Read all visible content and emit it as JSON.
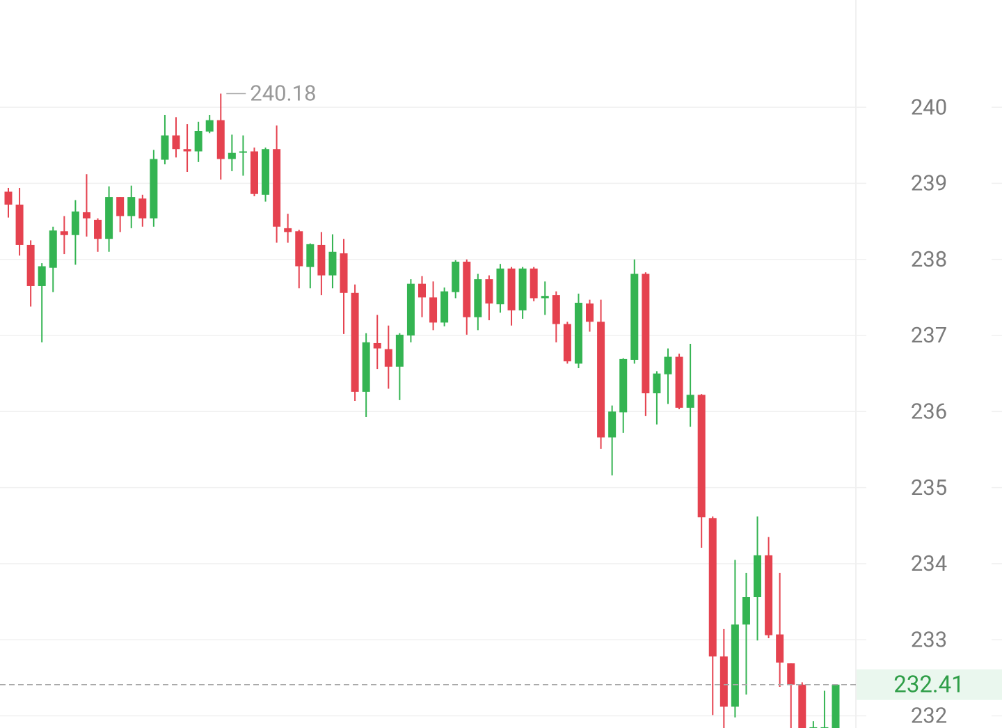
{
  "chart_data": {
    "type": "candlestick",
    "ylim": [
      231.84,
      241.41
    ],
    "yticks": [
      232,
      233,
      234,
      235,
      236,
      237,
      238,
      239,
      240
    ],
    "grid": true,
    "up_color": "#34b452",
    "down_color": "#e5424f",
    "high_marker": 240.18,
    "last_price": 232.41,
    "open": [
      238.89,
      238.72,
      238.19,
      237.65,
      237.89,
      238.37,
      238.32,
      238.62,
      238.52,
      238.27,
      238.82,
      238.57,
      238.8,
      238.54,
      239.31,
      239.63,
      239.45,
      239.42,
      239.68,
      239.83,
      239.32,
      239.41,
      239.42,
      238.85,
      239.45,
      238.41,
      238.37,
      237.9,
      238.19,
      237.79,
      238.08,
      237.56,
      236.26,
      236.9,
      236.82,
      236.59,
      237.0,
      237.68,
      237.5,
      237.17,
      237.57,
      237.97,
      237.24,
      237.74,
      237.41,
      237.88,
      237.33,
      237.88,
      237.49,
      237.53,
      237.15,
      236.63,
      237.42,
      237.18,
      235.66,
      235.99,
      236.68,
      237.81,
      236.24,
      236.49,
      236.72,
      236.05,
      236.22,
      234.6,
      232.78,
      232.12,
      233.2,
      233.56,
      234.11,
      233.07,
      232.69,
      232.41,
      231.75,
      231.7,
      231.8
    ],
    "high": [
      238.94,
      238.94,
      238.25,
      237.95,
      238.43,
      238.57,
      238.78,
      239.12,
      238.54,
      238.96,
      238.82,
      238.97,
      238.85,
      239.44,
      239.9,
      239.87,
      239.78,
      239.81,
      239.9,
      240.18,
      239.64,
      239.63,
      239.47,
      239.47,
      239.76,
      238.6,
      238.39,
      238.21,
      238.36,
      238.33,
      238.27,
      237.67,
      237.03,
      237.27,
      237.13,
      237.03,
      237.74,
      237.78,
      237.71,
      237.63,
      237.99,
      238.0,
      237.81,
      237.79,
      237.94,
      237.9,
      237.9,
      237.9,
      237.71,
      237.58,
      237.18,
      237.55,
      237.47,
      237.47,
      236.08,
      236.7,
      238.0,
      237.83,
      236.53,
      236.83,
      236.76,
      236.89,
      236.23,
      234.62,
      233.14,
      234.05,
      233.88,
      234.62,
      234.35,
      233.88,
      232.69,
      232.44,
      231.93,
      232.33,
      232.41
    ],
    "low": [
      238.55,
      238.05,
      237.38,
      236.91,
      237.57,
      238.07,
      237.93,
      238.3,
      238.1,
      238.1,
      238.36,
      238.41,
      238.43,
      238.43,
      239.25,
      239.34,
      239.15,
      239.28,
      239.66,
      239.05,
      239.16,
      239.1,
      238.83,
      238.76,
      238.22,
      238.22,
      237.62,
      237.62,
      237.53,
      237.62,
      237.02,
      236.14,
      235.93,
      236.56,
      236.3,
      236.15,
      236.91,
      237.24,
      237.07,
      237.12,
      237.49,
      237.01,
      237.07,
      237.2,
      237.3,
      237.13,
      237.22,
      237.45,
      237.27,
      236.91,
      236.63,
      236.57,
      237.05,
      235.51,
      235.16,
      235.72,
      236.63,
      235.94,
      235.83,
      236.1,
      236.03,
      235.8,
      234.21,
      232.01,
      231.7,
      231.98,
      232.28,
      232.99,
      233.02,
      232.38,
      231.7,
      231.7,
      231.7,
      231.7,
      231.7
    ],
    "close": [
      238.72,
      238.19,
      237.65,
      237.91,
      238.38,
      238.32,
      238.63,
      238.54,
      238.27,
      238.82,
      238.57,
      238.82,
      238.54,
      239.32,
      239.63,
      239.45,
      239.42,
      239.69,
      239.83,
      239.32,
      239.4,
      239.42,
      238.86,
      239.45,
      238.43,
      238.36,
      237.91,
      238.2,
      237.79,
      238.1,
      237.56,
      236.26,
      236.91,
      236.83,
      236.59,
      237.01,
      237.68,
      237.5,
      237.17,
      237.58,
      237.97,
      237.24,
      237.74,
      237.42,
      237.88,
      237.33,
      237.88,
      237.49,
      237.52,
      237.15,
      236.66,
      237.43,
      237.18,
      235.66,
      236.0,
      236.69,
      237.81,
      236.24,
      236.5,
      236.72,
      236.05,
      236.22,
      234.61,
      232.78,
      232.12,
      233.2,
      233.56,
      234.11,
      233.06,
      232.7,
      232.41,
      231.8,
      231.85,
      231.85,
      232.41
    ]
  }
}
